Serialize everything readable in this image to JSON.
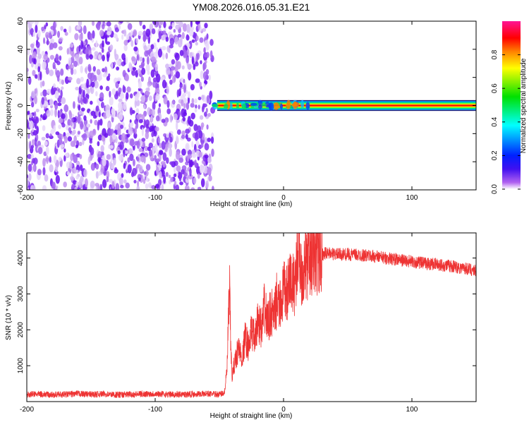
{
  "title": "YM08.2026.016.05.31.E21",
  "chart_data": [
    {
      "type": "heatmap",
      "title": "YM08.2026.016.05.31.E21",
      "xlabel": "Height of straight line (km)",
      "ylabel": "Frequency (Hz)",
      "xlim": [
        -200,
        150
      ],
      "ylim": [
        -60,
        60
      ],
      "xticks": [
        -200,
        -100,
        0,
        100
      ],
      "xtick_labels": [
        "-200",
        "-100",
        "0",
        "100"
      ],
      "yticks": [
        60,
        40,
        20,
        0,
        -20,
        -40,
        -60
      ],
      "ytick_labels": [
        "60",
        "40",
        "20",
        "0",
        "-20",
        "-40",
        "-60"
      ],
      "regions": [
        {
          "name": "broadband noise",
          "x_range": [
            -200,
            -55
          ],
          "y_range": [
            -60,
            60
          ],
          "amplitude_range": [
            0.0,
            0.15
          ]
        },
        {
          "name": "signal line",
          "x_range": [
            -55,
            150
          ],
          "center_frequency": 0,
          "half_width_hz": 2,
          "peak_amplitude": 0.9
        }
      ],
      "colorbar": {
        "label": "Normalized spectral amplitude",
        "range": [
          0,
          1
        ],
        "ticks": [
          "0.0",
          "0.2",
          "0.4",
          "0.6",
          "0.8"
        ],
        "colors": [
          "#ffffff",
          "#a020f0",
          "#0000ff",
          "#00ffff",
          "#00ff00",
          "#ffff00",
          "#ff8000",
          "#ff0000",
          "#ff1493"
        ]
      }
    },
    {
      "type": "line",
      "xlabel": "Height of straight line (km)",
      "ylabel": "SNR (10 * v/v)",
      "xlim": [
        -200,
        150
      ],
      "ylim": [
        0,
        4700
      ],
      "xticks": [
        -200,
        -100,
        0,
        100
      ],
      "xtick_labels": [
        "-200",
        "-100",
        "0",
        "100"
      ],
      "yticks": [
        1000,
        2000,
        3000,
        4000
      ],
      "ytick_labels": [
        "1000",
        "2000",
        "3000",
        "4000"
      ],
      "color": "#ee3333",
      "series": [
        {
          "name": "SNR",
          "x": [
            -200,
            -190,
            -180,
            -170,
            -160,
            -150,
            -140,
            -130,
            -120,
            -110,
            -100,
            -90,
            -80,
            -70,
            -60,
            -50,
            -46,
            -44,
            -43,
            -42,
            -41,
            -40,
            -38,
            -35,
            -32,
            -30,
            -27,
            -25,
            -22,
            -20,
            -17,
            -15,
            -12,
            -10,
            -7,
            -5,
            -3,
            0,
            3,
            5,
            8,
            10,
            12,
            13,
            15,
            18,
            20,
            25,
            30,
            35,
            40,
            50,
            60,
            70,
            80,
            90,
            100,
            110,
            120,
            130,
            140,
            150
          ],
          "y": [
            200,
            210,
            190,
            200,
            220,
            200,
            210,
            190,
            200,
            210,
            220,
            200,
            200,
            210,
            220,
            200,
            250,
            900,
            2200,
            3050,
            1400,
            700,
            1100,
            1500,
            1200,
            1800,
            1500,
            2000,
            1700,
            2300,
            2000,
            2600,
            2200,
            2500,
            2400,
            2900,
            2600,
            3100,
            3000,
            3400,
            3200,
            3700,
            4700,
            3800,
            3600,
            3900,
            3950,
            4050,
            4100,
            4150,
            4100,
            4100,
            4080,
            4050,
            4000,
            3950,
            3900,
            3850,
            3820,
            3780,
            3720,
            3650
          ]
        }
      ]
    }
  ]
}
